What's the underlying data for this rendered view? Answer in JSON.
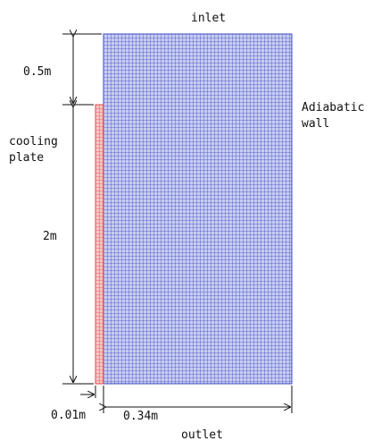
{
  "labels": {
    "inlet": "inlet",
    "outlet": "outlet",
    "adiabatic_wall_line1": "Adiabatic",
    "adiabatic_wall_line2": "wall",
    "cooling_plate_line1": "cooling",
    "cooling_plate_line2": "plate",
    "dim_top_height": "0.5m",
    "dim_plate_height": "2m",
    "dim_plate_width": "0.01m",
    "dim_fluid_width": "0.34m"
  },
  "colors": {
    "fluid_mesh": "#3b48c8",
    "fluid_fill": "#c9cdf0",
    "plate_mesh": "#e24a4a",
    "plate_fill": "#f3c6c6",
    "dimension_line": "#111111"
  }
}
